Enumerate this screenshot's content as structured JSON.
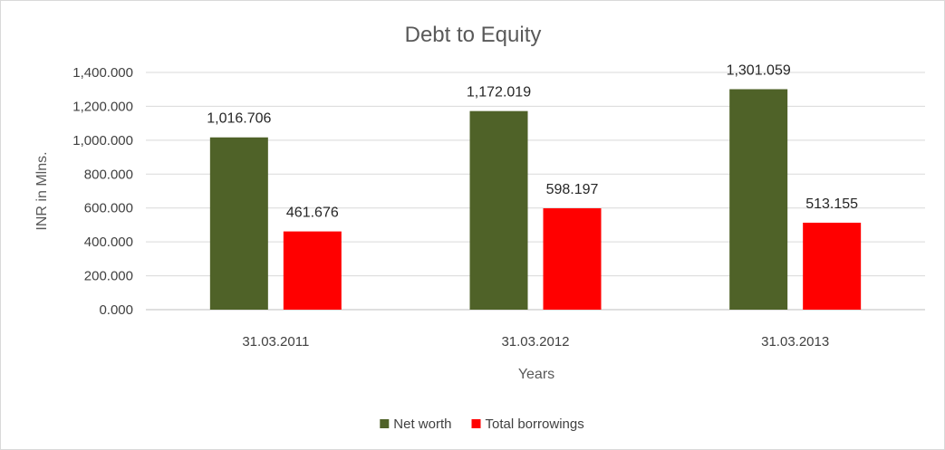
{
  "chart_data": {
    "type": "bar",
    "title": "Debt to Equity",
    "xlabel": "Years",
    "ylabel": "INR in Mlns.",
    "categories": [
      "31.03.2011",
      "31.03.2012",
      "31.03.2013"
    ],
    "series": [
      {
        "name": "Net worth",
        "color": "#4f6228",
        "values": [
          1016.706,
          1172.019,
          1301.059
        ],
        "labels": [
          "1,016.706",
          "1,172.019",
          "1,301.059"
        ]
      },
      {
        "name": "Total borrowings",
        "color": "#ff0000",
        "values": [
          461.676,
          598.197,
          513.155
        ],
        "labels": [
          "461.676",
          "598.197",
          "513.155"
        ]
      }
    ],
    "ylim": [
      0,
      1400
    ],
    "yticks": [
      0,
      200,
      400,
      600,
      800,
      1000,
      1200,
      1400
    ],
    "ytick_labels": [
      "0.000",
      "200.000",
      "400.000",
      "600.000",
      "800.000",
      "1,000.000",
      "1,200.000",
      "1,400.000"
    ],
    "grid": true,
    "legend_position": "bottom"
  }
}
